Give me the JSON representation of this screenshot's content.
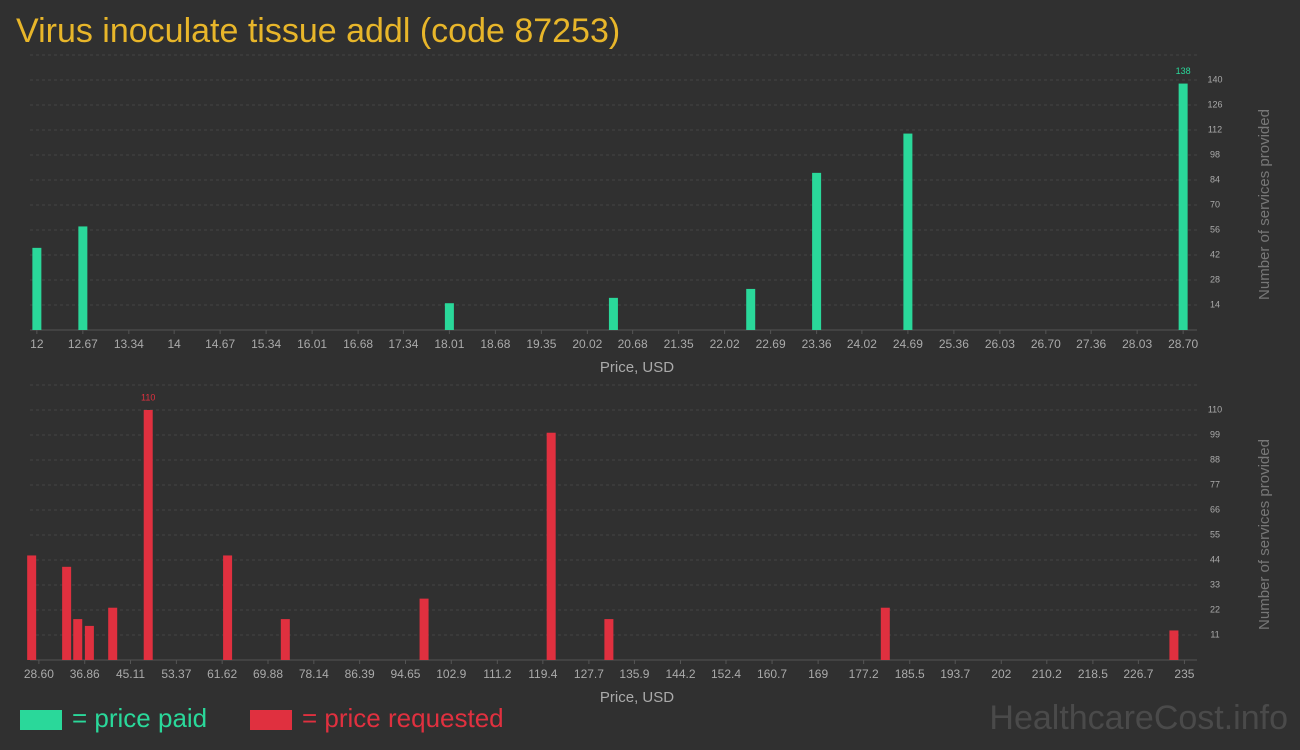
{
  "title": "Virus inoculate tissue addl (code 87253)",
  "chart_data": [
    {
      "type": "bar",
      "color": "#2ad89a",
      "x": [
        12,
        12.67,
        18.01,
        20.4,
        22.4,
        23.36,
        24.69,
        28.7
      ],
      "values": [
        46,
        58,
        15,
        18,
        23,
        88,
        110,
        138
      ],
      "xlim": [
        11.9,
        28.8
      ],
      "xticks": [
        12,
        12.67,
        13.34,
        14,
        14.67,
        15.34,
        16.01,
        16.68,
        17.34,
        18.01,
        18.68,
        19.35,
        20.02,
        20.68,
        21.35,
        22.02,
        22.69,
        23.36,
        24.02,
        24.69,
        25.36,
        26.03,
        {
          "value": 26.7,
          "label": "26.70"
        },
        27.36,
        28.03,
        {
          "value": 28.7,
          "label": "28.70"
        }
      ],
      "ylim": [
        0,
        154
      ],
      "yticks": [
        14,
        28,
        42,
        56,
        70,
        84,
        98,
        112,
        126,
        140
      ],
      "xlabel": "Price, USD",
      "ylabel": "Number of services provided",
      "grid": true
    },
    {
      "type": "bar",
      "color": "#e0303f",
      "x": [
        27.3,
        33.6,
        35.6,
        37.7,
        41.9,
        48.3,
        62.6,
        73.0,
        98.0,
        120.9,
        131.3,
        181.1,
        233.1
      ],
      "values": [
        46,
        41,
        18,
        15,
        23,
        110,
        46,
        18,
        27,
        100,
        18,
        23,
        13
      ],
      "xlim": [
        27,
        236
      ],
      "xticks": [
        {
          "value": 28.6,
          "label": "28.60"
        },
        36.86,
        45.11,
        53.37,
        61.62,
        69.88,
        78.14,
        86.39,
        94.65,
        102.9,
        111.2,
        119.4,
        127.7,
        135.9,
        144.2,
        152.4,
        160.7,
        169,
        177.2,
        185.5,
        193.7,
        202,
        210.2,
        218.5,
        226.7,
        235
      ],
      "ylim": [
        0,
        121
      ],
      "yticks": [
        11,
        22,
        33,
        44,
        55,
        66,
        77,
        88,
        99,
        110
      ],
      "xlabel": "Price, USD",
      "ylabel": "Number of services provided",
      "grid": true
    }
  ],
  "legend": [
    {
      "label": "= price paid",
      "color": "#2ad89a"
    },
    {
      "label": "= price requested",
      "color": "#e0303f"
    }
  ],
  "watermark": "HealthcareCost.info"
}
